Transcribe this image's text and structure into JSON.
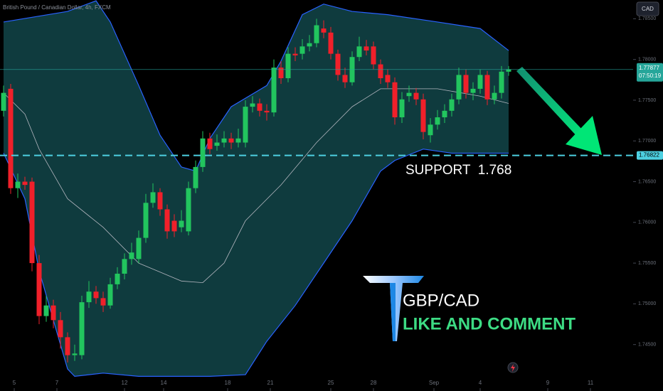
{
  "chart_data": {
    "type": "candlestick",
    "title": "British Pound / Canadian Dollar, 4h, FXCM",
    "currency": "CAD",
    "up_color": "#22c55e",
    "down_color": "#f0202a",
    "band_fill": "#0f3b3e",
    "band_line_color": "#2962ff",
    "basis_color": "#b2b5be",
    "xlim": [
      -0.5,
      88.5
    ],
    "ylim": [
      1.7393,
      1.7873
    ],
    "yticks": [
      {
        "value": 1.745,
        "label": "1.74500"
      },
      {
        "value": 1.75,
        "label": "1.75000"
      },
      {
        "value": 1.755,
        "label": "1.75500"
      },
      {
        "value": 1.76,
        "label": "1.76000"
      },
      {
        "value": 1.765,
        "label": "1.76500"
      },
      {
        "value": 1.77,
        "label": "1.77000"
      },
      {
        "value": 1.775,
        "label": "1.77500"
      },
      {
        "value": 1.78,
        "label": "1.78000"
      },
      {
        "value": 1.785,
        "label": "1.78500"
      }
    ],
    "xticks": [
      {
        "value": 1.5,
        "label": "5"
      },
      {
        "value": 7.5,
        "label": "7"
      },
      {
        "value": 17,
        "label": "12"
      },
      {
        "value": 22.5,
        "label": "14"
      },
      {
        "value": 31.5,
        "label": "18"
      },
      {
        "value": 37.5,
        "label": "21"
      },
      {
        "value": 46,
        "label": "25"
      },
      {
        "value": 52,
        "label": "28"
      },
      {
        "value": 60.5,
        "label": "Sep"
      },
      {
        "value": 67,
        "label": "4"
      },
      {
        "value": 76.5,
        "label": "9"
      },
      {
        "value": 82.5,
        "label": "11"
      }
    ],
    "open": [
      1.7737,
      1.7764,
      1.7642,
      1.765,
      1.765,
      1.755,
      1.7485,
      1.7498,
      1.748,
      1.7459,
      1.7437,
      1.7437,
      1.7502,
      1.7515,
      1.7507,
      1.7498,
      1.7524,
      1.7537,
      1.7555,
      1.7555,
      1.7581,
      1.7624,
      1.7637,
      1.7616,
      1.7602,
      1.7594,
      1.7589,
      1.7642,
      1.7668,
      1.7703,
      1.7694,
      1.7698,
      1.7703,
      1.7698,
      1.7698,
      1.7742,
      1.7746,
      1.7737,
      1.7735,
      1.779,
      1.7777,
      1.7807,
      1.7807,
      1.7816,
      1.782,
      1.7838,
      1.7833,
      1.7807,
      1.7781,
      1.7772,
      1.7803,
      1.7816,
      1.7816,
      1.7794,
      1.7781,
      1.7772,
      1.7729,
      1.7755,
      1.7759,
      1.7751,
      1.7707,
      1.772,
      1.7729,
      1.7737,
      1.7751,
      1.7781,
      1.7759,
      1.7764,
      1.7781,
      1.7751,
      1.7759,
      1.7785
    ],
    "high": [
      1.7768,
      1.777,
      1.766,
      1.7656,
      1.7655,
      1.756,
      1.751,
      1.7505,
      1.749,
      1.7465,
      1.745,
      1.751,
      1.7528,
      1.7522,
      1.7515,
      1.7532,
      1.7545,
      1.7562,
      1.7575,
      1.759,
      1.7635,
      1.7648,
      1.7642,
      1.7622,
      1.761,
      1.7615,
      1.765,
      1.7676,
      1.7712,
      1.771,
      1.7708,
      1.7712,
      1.771,
      1.7715,
      1.775,
      1.7755,
      1.7752,
      1.7745,
      1.78,
      1.7798,
      1.7815,
      1.7815,
      1.7825,
      1.783,
      1.785,
      1.7848,
      1.784,
      1.7812,
      1.779,
      1.781,
      1.7828,
      1.7824,
      1.7822,
      1.78,
      1.7788,
      1.7778,
      1.776,
      1.7768,
      1.7765,
      1.7758,
      1.7728,
      1.7738,
      1.7745,
      1.7758,
      1.779,
      1.7788,
      1.7772,
      1.7788,
      1.7786,
      1.7768,
      1.7792,
      1.7792
    ],
    "low": [
      1.773,
      1.7635,
      1.763,
      1.764,
      1.754,
      1.7475,
      1.7478,
      1.747,
      1.7445,
      1.7428,
      1.743,
      1.7432,
      1.7495,
      1.75,
      1.749,
      1.7494,
      1.7518,
      1.753,
      1.7548,
      1.755,
      1.7575,
      1.7618,
      1.7608,
      1.758,
      1.7582,
      1.7588,
      1.7584,
      1.7636,
      1.7662,
      1.7684,
      1.7688,
      1.7692,
      1.769,
      1.7692,
      1.7692,
      1.7735,
      1.773,
      1.7725,
      1.773,
      1.777,
      1.7772,
      1.7798,
      1.78,
      1.781,
      1.7815,
      1.7826,
      1.78,
      1.7774,
      1.7765,
      1.7768,
      1.7798,
      1.7805,
      1.7788,
      1.777,
      1.7765,
      1.772,
      1.7722,
      1.7748,
      1.7744,
      1.7702,
      1.7698,
      1.7714,
      1.7722,
      1.773,
      1.7745,
      1.7752,
      1.775,
      1.7758,
      1.7744,
      1.7745,
      1.7752,
      1.778
    ],
    "close": [
      1.7759,
      1.7642,
      1.765,
      1.7646,
      1.755,
      1.7485,
      1.7498,
      1.748,
      1.7459,
      1.7437,
      1.7439,
      1.7502,
      1.7515,
      1.7507,
      1.7498,
      1.7524,
      1.7537,
      1.7555,
      1.7563,
      1.7581,
      1.7624,
      1.7637,
      1.7616,
      1.7589,
      1.7589,
      1.7602,
      1.7642,
      1.7668,
      1.7703,
      1.769,
      1.7698,
      1.7703,
      1.7698,
      1.7703,
      1.7742,
      1.7746,
      1.7737,
      1.7735,
      1.779,
      1.7777,
      1.7807,
      1.7805,
      1.7816,
      1.782,
      1.7842,
      1.7833,
      1.7807,
      1.7781,
      1.7772,
      1.7803,
      1.7816,
      1.7811,
      1.7794,
      1.7777,
      1.7772,
      1.7729,
      1.7751,
      1.7759,
      1.7751,
      1.7711,
      1.772,
      1.7729,
      1.7737,
      1.7751,
      1.7781,
      1.7759,
      1.7764,
      1.7781,
      1.7751,
      1.7759,
      1.7785,
      1.7788
    ],
    "bands": {
      "upper": {
        "x": [
          0,
          9,
          13,
          15,
          19,
          22,
          25,
          27,
          29,
          32,
          37,
          39,
          42,
          45,
          49,
          54,
          61,
          67,
          71
        ],
        "values": [
          1.7846,
          1.7859,
          1.7872,
          1.7846,
          1.7768,
          1.7707,
          1.7668,
          1.7663,
          1.7703,
          1.7742,
          1.7768,
          1.7798,
          1.7855,
          1.7868,
          1.7859,
          1.7855,
          1.7846,
          1.7838,
          1.7811
        ]
      },
      "basis": {
        "x": [
          0,
          3,
          5,
          9,
          14,
          19,
          25,
          28,
          31,
          34,
          39,
          44,
          49,
          53,
          57,
          61,
          67,
          71
        ],
        "values": [
          1.7759,
          1.7733,
          1.769,
          1.7629,
          1.7594,
          1.755,
          1.7528,
          1.7526,
          1.755,
          1.7602,
          1.7646,
          1.7698,
          1.7742,
          1.7764,
          1.7764,
          1.7764,
          1.7755,
          1.7746
        ]
      },
      "lower": {
        "x": [
          0,
          3,
          5,
          7,
          9,
          10,
          14,
          19,
          24,
          29,
          34,
          37,
          41,
          45,
          49,
          53,
          55,
          59,
          63,
          71
        ],
        "values": [
          1.7685,
          1.7629,
          1.7541,
          1.748,
          1.742,
          1.7411,
          1.7415,
          1.7411,
          1.7411,
          1.7411,
          1.7413,
          1.7454,
          1.7498,
          1.755,
          1.7602,
          1.7663,
          1.7676,
          1.769,
          1.7685,
          1.7685
        ]
      }
    },
    "last_price": {
      "value": 1.77877,
      "label": "1.77877",
      "color": "#26a69a"
    },
    "countdown": "07:50:19",
    "support": {
      "value": 1.76822,
      "label": "1.76822",
      "color": "#4dd0e1"
    },
    "annotation": "SUPPORT  1.768",
    "brand": {
      "pair": "GBP/CAD",
      "call": "LIKE AND COMMENT"
    }
  }
}
